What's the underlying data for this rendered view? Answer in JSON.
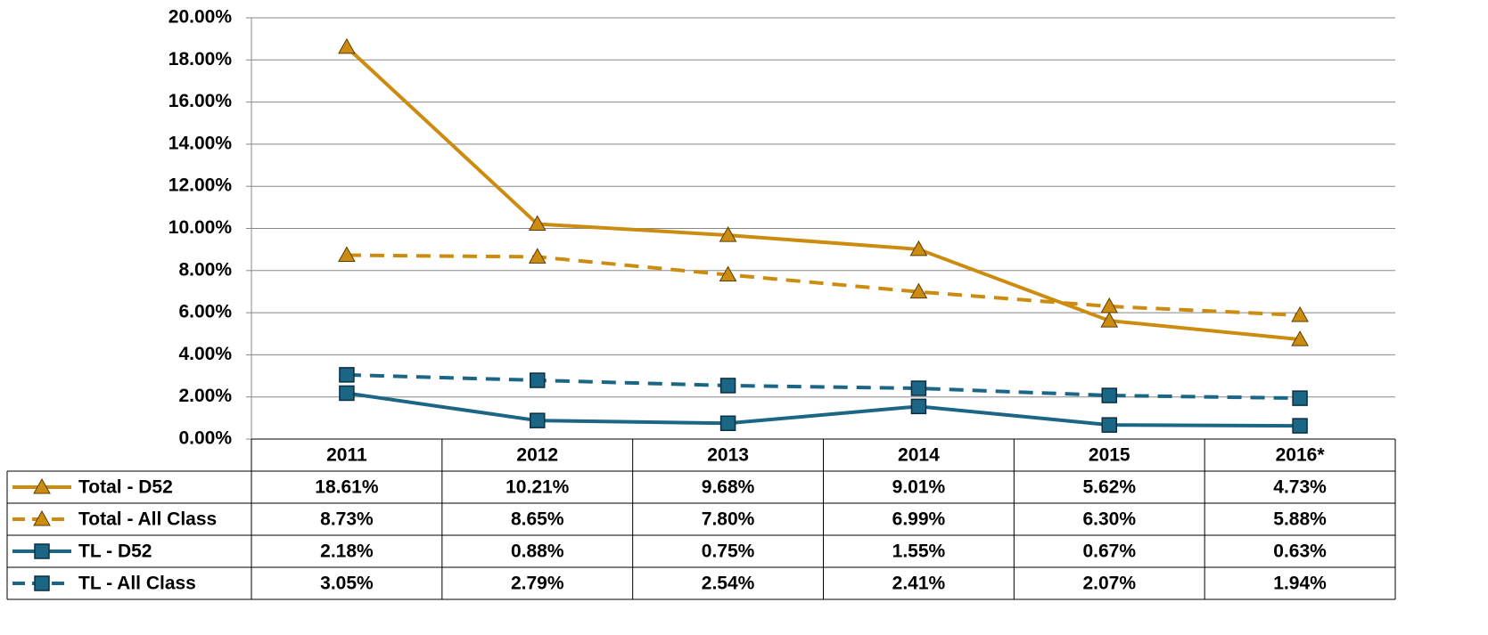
{
  "chart_data": {
    "type": "line",
    "categories": [
      "2011",
      "2012",
      "2013",
      "2014",
      "2015",
      "2016*"
    ],
    "series": [
      {
        "name": "Total - D52",
        "color": "#CC8C10",
        "line_style": "solid",
        "marker": "triangle",
        "values": [
          18.61,
          10.21,
          9.68,
          9.01,
          5.62,
          4.73
        ],
        "value_labels": [
          "18.61%",
          "10.21%",
          "9.68%",
          "9.01%",
          "5.62%",
          "4.73%"
        ]
      },
      {
        "name": "Total - All Class",
        "color": "#CC8C10",
        "line_style": "dashed",
        "marker": "triangle",
        "values": [
          8.73,
          8.65,
          7.8,
          6.99,
          6.3,
          5.88
        ],
        "value_labels": [
          "8.73%",
          "8.65%",
          "7.80%",
          "6.99%",
          "6.30%",
          "5.88%"
        ]
      },
      {
        "name": "TL - D52",
        "color": "#1B6585",
        "line_style": "solid",
        "marker": "square",
        "values": [
          2.18,
          0.88,
          0.75,
          1.55,
          0.67,
          0.63
        ],
        "value_labels": [
          "2.18%",
          "0.88%",
          "0.75%",
          "1.55%",
          "0.67%",
          "0.63%"
        ]
      },
      {
        "name": "TL - All Class",
        "color": "#1B6585",
        "line_style": "dashed",
        "marker": "square",
        "values": [
          3.05,
          2.79,
          2.54,
          2.41,
          2.07,
          1.94
        ],
        "value_labels": [
          "3.05%",
          "2.79%",
          "2.54%",
          "2.41%",
          "2.07%",
          "1.94%"
        ]
      }
    ],
    "ylim": [
      0,
      20
    ],
    "yticks": [
      {
        "value": 0,
        "label": "0.00%"
      },
      {
        "value": 2,
        "label": "2.00%"
      },
      {
        "value": 4,
        "label": "4.00%"
      },
      {
        "value": 6,
        "label": "6.00%"
      },
      {
        "value": 8,
        "label": "8.00%"
      },
      {
        "value": 10,
        "label": "10.00%"
      },
      {
        "value": 12,
        "label": "12.00%"
      },
      {
        "value": 14,
        "label": "14.00%"
      },
      {
        "value": 16,
        "label": "16.00%"
      },
      {
        "value": 18,
        "label": "18.00%"
      },
      {
        "value": 20,
        "label": "20.00%"
      }
    ],
    "grid": true
  }
}
